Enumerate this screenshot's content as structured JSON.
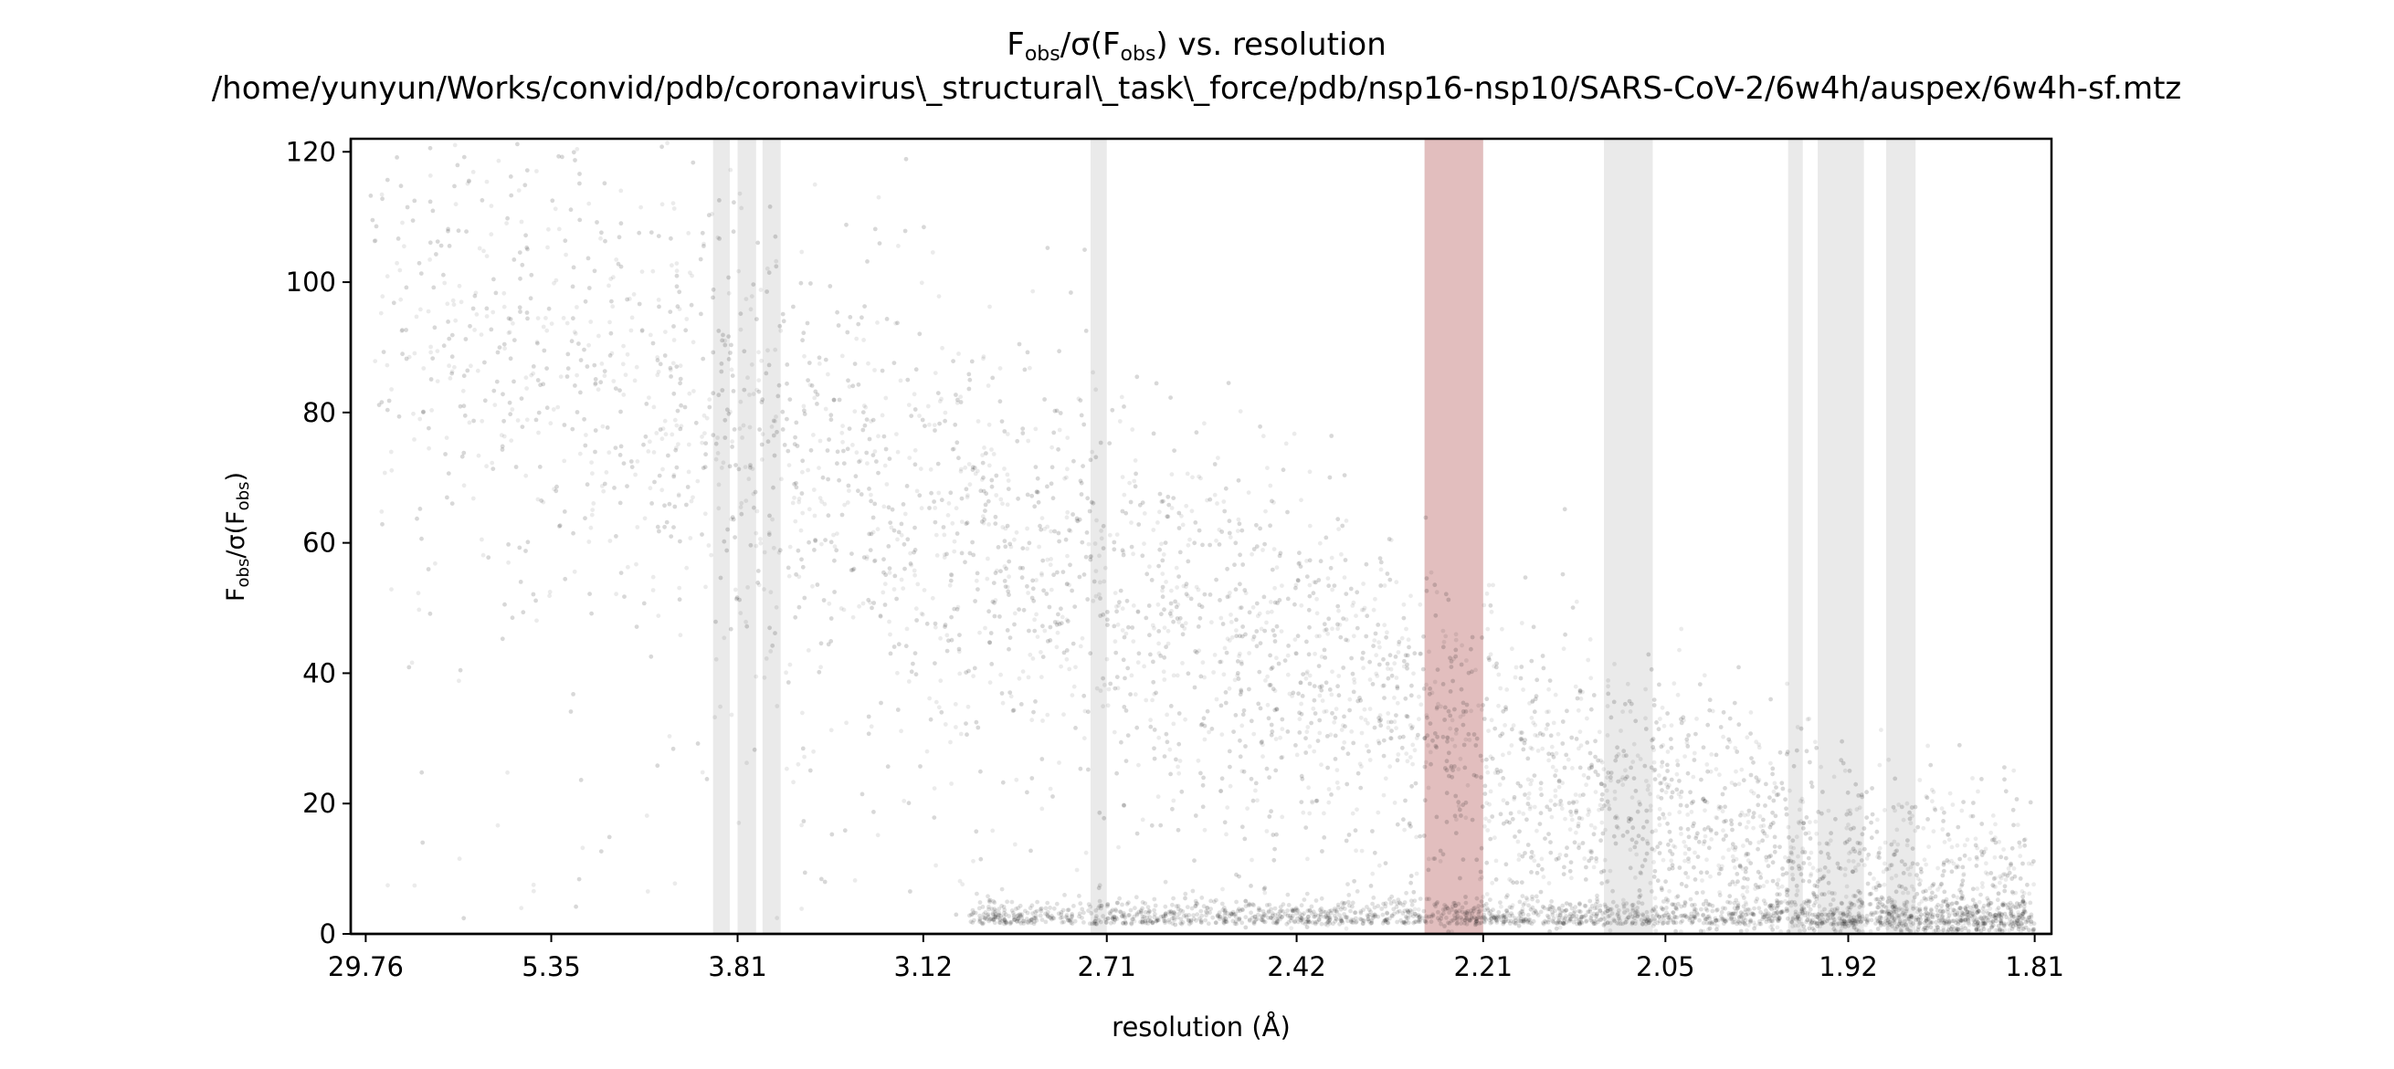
{
  "chart_data": {
    "type": "scatter",
    "title": {
      "main": "vs. resolution",
      "symbol": {
        "base1": "F",
        "sub1": "obs",
        "mid": "/σ(F",
        "sub2": "obs",
        "end": ")"
      },
      "subtitle": "/home/yunyun/Works/convid/pdb/coronavirus\\_structural\\_task\\_force/pdb/nsp16-nsp10/SARS-CoV-2/6w4h/auspex/6w4h-sf.mtz"
    },
    "xlabel": "resolution (Å)",
    "ylabel": {
      "base1": "F",
      "sub1": "obs",
      "mid": "/σ(F",
      "sub2": "obs",
      "end": ")"
    },
    "x_scale": "1/d^2",
    "xlim_inverse_d2": [
      -0.0016,
      0.3083
    ],
    "ylim": [
      0,
      122
    ],
    "x_ticks": [
      "29.76",
      "5.35",
      "3.81",
      "3.12",
      "2.71",
      "2.42",
      "2.21",
      "2.05",
      "1.92",
      "1.81"
    ],
    "y_ticks": [
      0,
      20,
      40,
      60,
      80,
      100,
      120
    ],
    "point_color": "#000000",
    "point_alpha": 0.08,
    "ice_ring_color": "#dcdcdc",
    "flagged_ring_color": "#d98a8a",
    "ice_rings_resolution": [
      [
        3.94,
        3.85
      ],
      [
        3.81,
        3.72
      ],
      [
        3.69,
        3.61
      ],
      [
        2.74,
        2.71
      ],
      [
        2.27,
        2.21
      ],
      [
        2.1,
        2.06
      ],
      [
        1.96,
        1.95
      ],
      [
        1.94,
        1.91
      ],
      [
        1.896,
        1.878
      ]
    ],
    "flagged_rings_resolution": [
      [
        2.27,
        2.21
      ]
    ],
    "density_trend": [
      {
        "x": "29.76",
        "y": 100
      },
      {
        "x": "5.35",
        "y": 90
      },
      {
        "x": "3.81",
        "y": 78
      },
      {
        "x": "3.12",
        "y": 65
      },
      {
        "x": "2.71",
        "y": 55
      },
      {
        "x": "2.42",
        "y": 42
      },
      {
        "x": "2.21",
        "y": 30
      },
      {
        "x": "2.05",
        "y": 20
      },
      {
        "x": "1.92",
        "y": 10
      },
      {
        "x": "1.81",
        "y": 4
      }
    ],
    "legend": "none",
    "grid": false
  }
}
